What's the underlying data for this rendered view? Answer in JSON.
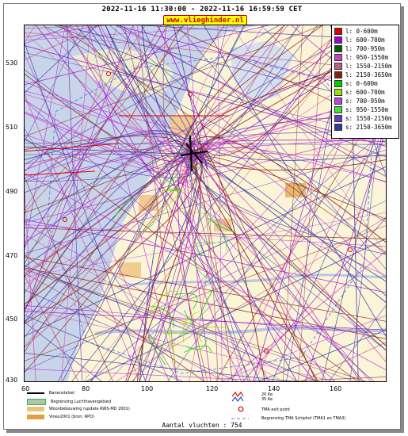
{
  "header": {
    "title": "2022-11-16 11:30:00 - 2022-11-16 16:59:59 CET",
    "site": "www.vlieghinder.nl"
  },
  "axes": {
    "y_ticks": [
      "530",
      "510",
      "490",
      "470",
      "450",
      "430"
    ],
    "x_ticks": [
      "60",
      "80",
      "100",
      "120",
      "140",
      "160"
    ]
  },
  "legend": {
    "items": [
      {
        "label": "l: 0-600m",
        "color": "#e00000"
      },
      {
        "label": "l: 600-700m",
        "color": "#a000d0"
      },
      {
        "label": "l: 700-950m",
        "color": "#006000"
      },
      {
        "label": "l: 950-1550m",
        "color": "#d040c0"
      },
      {
        "label": "l: 1550-2150m",
        "color": "#c06080"
      },
      {
        "label": "l: 2150-3650m",
        "color": "#8b2010"
      },
      {
        "label": "s: 0-600m",
        "color": "#00d000"
      },
      {
        "label": "s: 600-700m",
        "color": "#a0e000"
      },
      {
        "label": "s: 700-950m",
        "color": "#c040e0"
      },
      {
        "label": "s: 950-1550m",
        "color": "#40e040"
      },
      {
        "label": "s: 1550-2150m",
        "color": "#6040c0"
      },
      {
        "label": "s: 2150-3650m",
        "color": "#3838a0"
      }
    ]
  },
  "bottom_legend": {
    "items": [
      {
        "label": "Banenstelsel",
        "color": "#000000"
      },
      {
        "label": "Begrenzing Luchthavengebied",
        "color": "#a8c8a8"
      },
      {
        "label": "Woonbebouwing (update RWS-MD 2001)",
        "color": "#f0c080"
      },
      {
        "label": "Vinex2001 (bron: RPD)",
        "color": "#e0a040"
      }
    ],
    "right_items": [
      {
        "label": "20 Ke"
      },
      {
        "label": "35 Ke"
      },
      {
        "label": "TMA exit point"
      },
      {
        "label": "Begrenzing TMA Schiphol  (TMA1 en TMA3)"
      }
    ]
  },
  "footer": {
    "count": "Aantal vluchten : 754"
  }
}
